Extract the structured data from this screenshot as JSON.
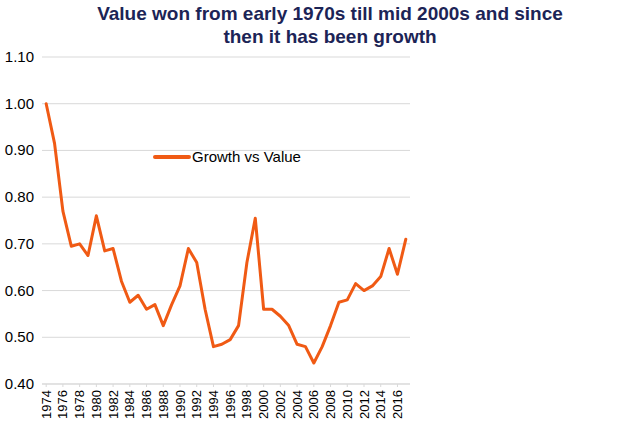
{
  "chart_data": {
    "type": "line",
    "title": "Value won from early 1970s till mid 2000s and since then it has been growth",
    "x": [
      1974,
      1975,
      1976,
      1977,
      1978,
      1979,
      1980,
      1981,
      1982,
      1983,
      1984,
      1985,
      1986,
      1987,
      1988,
      1989,
      1990,
      1991,
      1992,
      1993,
      1994,
      1995,
      1996,
      1997,
      1998,
      1999,
      2000,
      2001,
      2002,
      2003,
      2004,
      2005,
      2006,
      2007,
      2008,
      2009,
      2010,
      2011,
      2012,
      2013,
      2014,
      2015,
      2016,
      2017
    ],
    "series": [
      {
        "name": "Growth vs Value",
        "color": "#f05a14",
        "values": [
          1.0,
          0.915,
          0.77,
          0.695,
          0.7,
          0.675,
          0.76,
          0.685,
          0.69,
          0.62,
          0.575,
          0.59,
          0.56,
          0.57,
          0.525,
          0.57,
          0.61,
          0.69,
          0.66,
          0.56,
          0.48,
          0.485,
          0.495,
          0.525,
          0.66,
          0.755,
          0.56,
          0.56,
          0.545,
          0.525,
          0.485,
          0.48,
          0.445,
          0.48,
          0.525,
          0.575,
          0.58,
          0.615,
          0.6,
          0.61,
          0.63,
          0.69,
          0.635,
          0.71
        ]
      }
    ],
    "xlim": [
      1973.5,
      2017.5
    ],
    "xticks": [
      1974,
      1976,
      1978,
      1980,
      1982,
      1984,
      1986,
      1988,
      1990,
      1992,
      1994,
      1996,
      1998,
      2000,
      2002,
      2004,
      2006,
      2008,
      2010,
      2012,
      2014,
      2016
    ],
    "ylim": [
      0.4,
      1.1
    ],
    "yticks": [
      {
        "value": 0.4,
        "label": "0.40"
      },
      {
        "value": 0.5,
        "label": "0.50"
      },
      {
        "value": 0.6,
        "label": "0.60"
      },
      {
        "value": 0.7,
        "label": "0.70"
      },
      {
        "value": 0.8,
        "label": "0.80"
      },
      {
        "value": 0.9,
        "label": "0.90"
      },
      {
        "value": 1,
        "label": "1.00"
      },
      {
        "value": 1.1,
        "label": "1.10"
      }
    ],
    "grid": true,
    "legend": "upper left"
  }
}
